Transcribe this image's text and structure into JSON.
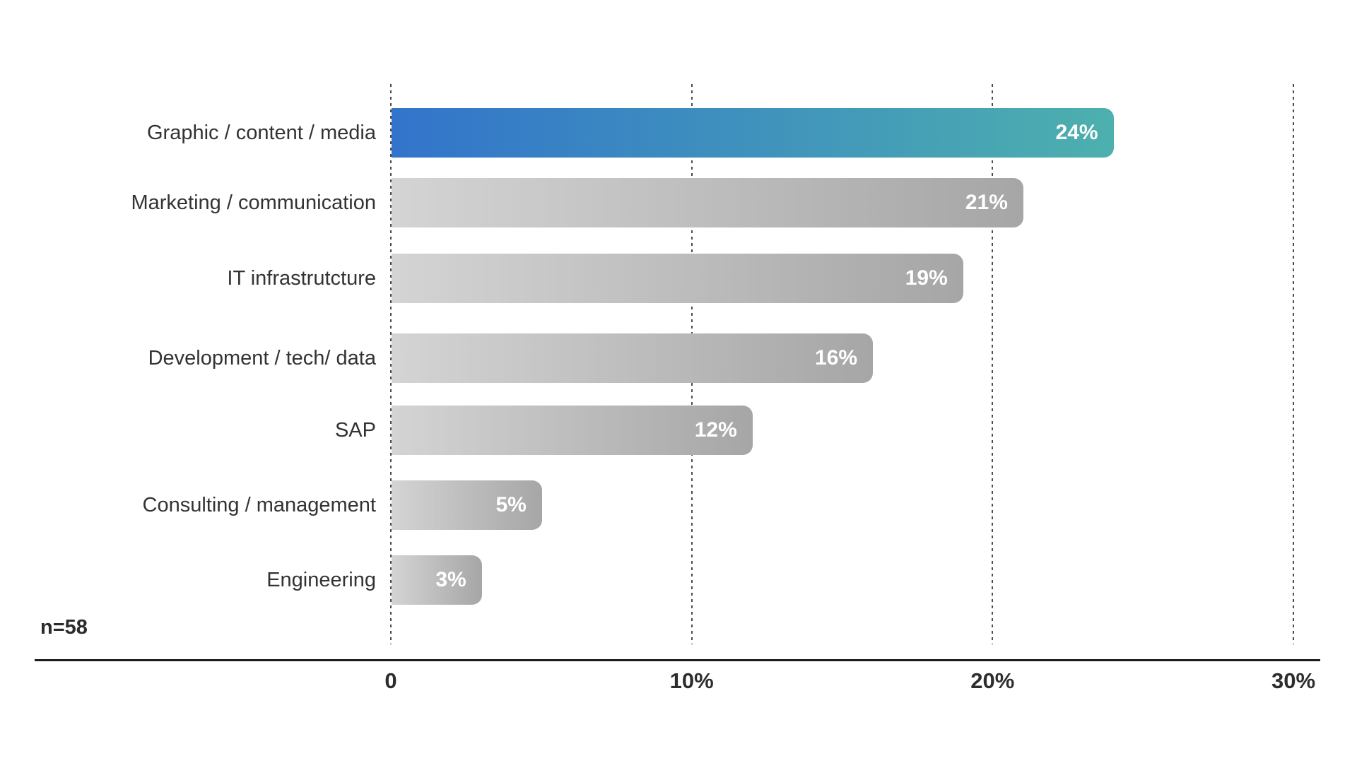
{
  "page": {
    "background": "#ffffff"
  },
  "chart_data": {
    "type": "bar",
    "orientation": "horizontal",
    "title": "",
    "categories": [
      "Graphic / content / media",
      "Marketing / communication",
      "IT infrastrutcture",
      "Development / tech/ data",
      "SAP",
      "Consulting / management",
      "Engineering"
    ],
    "values": [
      24,
      21,
      19,
      16,
      12,
      5,
      3
    ],
    "value_labels": [
      "24%",
      "21%",
      "19%",
      "16%",
      "12%",
      "5%",
      "3%"
    ],
    "highlight_index": 0,
    "x_axis": {
      "tick_labels": [
        "0",
        "10%",
        "20%",
        "30%"
      ],
      "tick_values": [
        0,
        10,
        20,
        30
      ],
      "range": [
        0,
        30
      ]
    },
    "grid": "dashed-vertical",
    "legend": "none",
    "sample_size_note": "n=58",
    "colors": {
      "highlight_gradient_start": "#3274cb",
      "highlight_gradient_end": "#4db0ae",
      "bar_gradient_start": "#d4d4d4",
      "bar_gradient_end": "#a6a6a6",
      "value_label": "#ffffff",
      "category_label": "#333333",
      "tick_label": "#2d2d2d",
      "axis_line": "#1e1e1e",
      "gridline": "#4c4c4c"
    }
  }
}
